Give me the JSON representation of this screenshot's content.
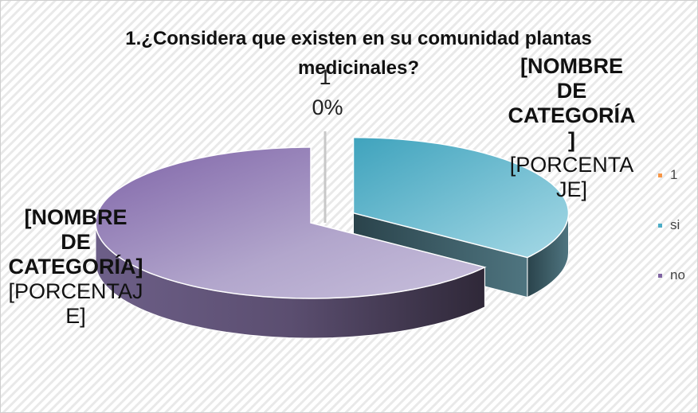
{
  "chart_data": {
    "type": "pie",
    "title": "1.¿Considera que existen en su comunidad plantas medicinales?",
    "categories": [
      "1",
      "si",
      "no"
    ],
    "values": [
      0,
      35,
      65
    ],
    "colors": [
      "#f79646",
      "#4bacc6",
      "#8064a2"
    ],
    "data_labels": [
      {
        "name": "1",
        "value": "0%"
      },
      {
        "name": "[NOMBRE DE CATEGORÍA]",
        "value": "[PORCENTAJE]"
      },
      {
        "name": "[NOMBRE DE CATEGORÍA]",
        "value": "[PORCENTAJE]"
      }
    ],
    "explode": [
      false,
      true,
      false
    ],
    "legend": "right"
  }
}
